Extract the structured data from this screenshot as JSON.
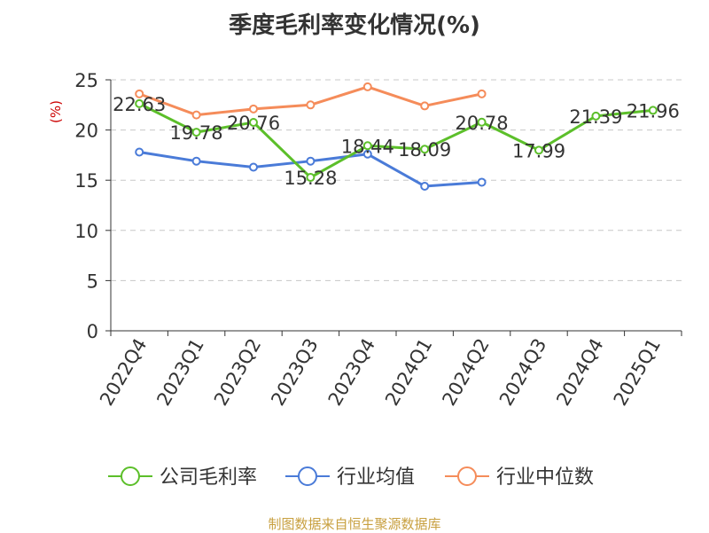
{
  "title": "季度毛利率变化情况(%)",
  "source": "制图数据来自恒生聚源数据库",
  "colors": {
    "company": "#5cbf2a",
    "industry_avg": "#4a7bd8",
    "industry_median": "#f58c5a",
    "ylabel": "#cc0000",
    "grid": "#c8c8c8",
    "axis": "#333333",
    "text": "#333333"
  },
  "chart_data": {
    "type": "line",
    "ylabel": "(%)",
    "xlabel": "",
    "ylim": [
      0,
      25
    ],
    "yticks": [
      0,
      5,
      10,
      15,
      20,
      25
    ],
    "grid": true,
    "legend_position": "bottom",
    "categories": [
      "2022Q4",
      "2023Q1",
      "2023Q2",
      "2023Q3",
      "2023Q4",
      "2024Q1",
      "2024Q2",
      "2024Q3",
      "2024Q4",
      "2025Q1"
    ],
    "series": [
      {
        "name": "公司毛利率",
        "values": [
          22.63,
          19.78,
          20.76,
          15.28,
          18.44,
          18.09,
          20.78,
          17.99,
          21.39,
          21.96
        ],
        "labels": [
          "22.63",
          "19.78",
          "20.76",
          "15.28",
          "18.44",
          "18.09",
          "20.78",
          "17.99",
          "21.39",
          "21.96"
        ]
      },
      {
        "name": "行业均值",
        "values": [
          17.8,
          16.9,
          16.3,
          16.9,
          17.6,
          14.4,
          14.8,
          null,
          null,
          null
        ]
      },
      {
        "name": "行业中位数",
        "values": [
          23.6,
          21.5,
          22.1,
          22.5,
          24.3,
          22.4,
          23.6,
          null,
          null,
          null
        ]
      }
    ]
  }
}
